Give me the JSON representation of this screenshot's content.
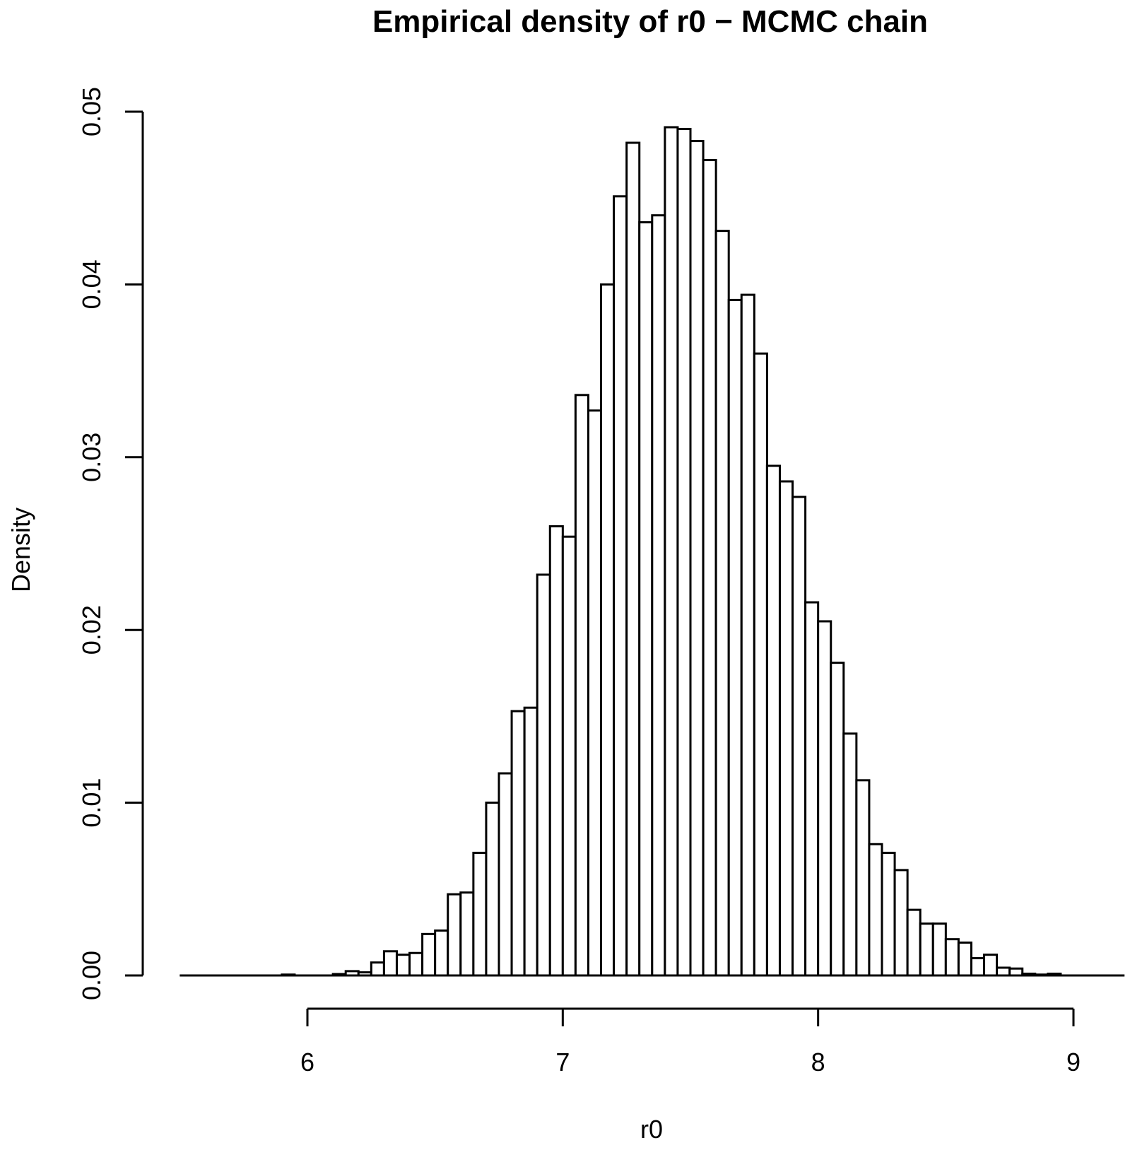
{
  "chart_data": {
    "type": "bar",
    "title": "Empirical density of r0 − MCMC chain",
    "xlabel": "r0",
    "ylabel": "Density",
    "xlim": [
      5.5,
      9.2
    ],
    "ylim": [
      0,
      0.05
    ],
    "x_ticks": [
      6,
      7,
      8,
      9
    ],
    "x_tick_labels": [
      "6",
      "7",
      "8",
      "9"
    ],
    "y_ticks": [
      0,
      0.01,
      0.02,
      0.03,
      0.04,
      0.05
    ],
    "y_tick_labels": [
      "0.00",
      "0.01",
      "0.02",
      "0.03",
      "0.04",
      "0.05"
    ],
    "bin_width": 0.05,
    "bin_start": 5.5,
    "values": [
      0,
      0,
      0,
      0,
      0,
      0,
      0,
      0,
      5e-05,
      0,
      0,
      0,
      8e-05,
      0.00025,
      0.00018,
      0.00075,
      0.0014,
      0.0012,
      0.0013,
      0.0024,
      0.0026,
      0.0047,
      0.0048,
      0.0071,
      0.01,
      0.0117,
      0.0153,
      0.0155,
      0.0232,
      0.026,
      0.0254,
      0.0336,
      0.0327,
      0.04,
      0.0451,
      0.0482,
      0.0436,
      0.044,
      0.0491,
      0.049,
      0.0483,
      0.0472,
      0.0431,
      0.0391,
      0.0394,
      0.036,
      0.0295,
      0.0286,
      0.0277,
      0.0216,
      0.0205,
      0.0181,
      0.014,
      0.0113,
      0.0076,
      0.0071,
      0.0061,
      0.0038,
      0.003,
      0.003,
      0.0021,
      0.0019,
      0.001,
      0.0012,
      0.00045,
      0.0004,
      0.0001,
      5e-05,
      0.0001,
      0,
      0,
      0,
      0,
      0
    ]
  }
}
